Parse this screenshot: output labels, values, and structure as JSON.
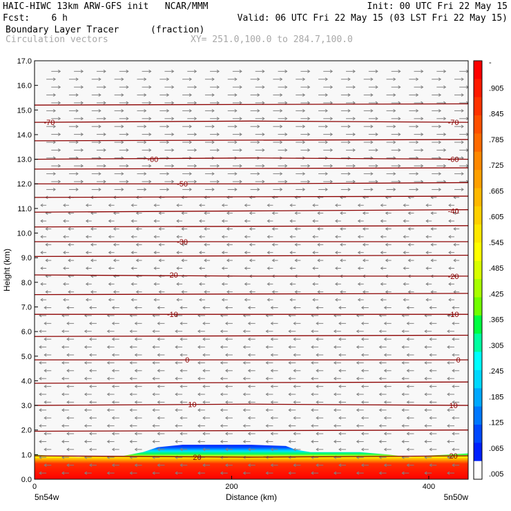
{
  "header": {
    "title_left": "HAIC-HIWC 13km ARW-GFS init   NCAR/MMM",
    "init": "Init: 00 UTC Fri 22 May 15",
    "fcst": "Fcst:    6 h",
    "valid": "Valid: 06 UTC Fri 22 May 15 (03 LST Fri 22 May 15)",
    "field": "Boundary Layer Tracer",
    "units": "(fraction)",
    "vectors": "Circulation vectors",
    "xsect": "XY= 251.0,100.0 to 284.7,100.0"
  },
  "chart_data": {
    "type": "heatmap",
    "title": "Boundary Layer Tracer",
    "units": "(fraction)",
    "xlabel": "Distance (km)",
    "ylabel": "Height (km)",
    "xlim": [
      0,
      440
    ],
    "ylim": [
      0,
      17
    ],
    "x_ticks": [
      0,
      200,
      400
    ],
    "y_ticks": [
      "0.0",
      "1.0",
      "2.0",
      "3.0",
      "4.0",
      "5.0",
      "6.0",
      "7.0",
      "8.0",
      "9.0",
      "10.0",
      "11.0",
      "12.0",
      "13.0",
      "14.0",
      "15.0",
      "16.0",
      "17.0"
    ],
    "x_end_labels": {
      "left": "5n54w",
      "right": "5n50w"
    },
    "colorbar": {
      "labels": [
        "-",
        ".905",
        ".845",
        ".785",
        ".725",
        ".665",
        ".605",
        ".545",
        ".485",
        ".425",
        ".365",
        ".305",
        ".245",
        ".185",
        ".125",
        ".065",
        ".005"
      ],
      "colors": [
        "#ff0000",
        "#ff1a00",
        "#ff3300",
        "#ff5000",
        "#ff6a00",
        "#ff8800",
        "#ffa000",
        "#ffb800",
        "#ffd000",
        "#ffe800",
        "#ffff00",
        "#d8ff00",
        "#a8ff00",
        "#70ff00",
        "#00ff40",
        "#00ffa0",
        "#00ffff",
        "#00d8ff",
        "#00a8ff",
        "#0078ff",
        "#0048ff",
        "#0020ff",
        "#ffffff"
      ]
    },
    "tracer_top": [
      [
        0,
        1.0
      ],
      [
        20,
        0.95
      ],
      [
        45,
        0.9
      ],
      [
        60,
        0.95
      ],
      [
        90,
        0.95
      ],
      [
        110,
        1.1
      ],
      [
        125,
        1.3
      ],
      [
        150,
        1.4
      ],
      [
        220,
        1.4
      ],
      [
        255,
        1.35
      ],
      [
        265,
        1.2
      ],
      [
        280,
        1.1
      ],
      [
        330,
        1.1
      ],
      [
        360,
        1.0
      ],
      [
        380,
        0.9
      ],
      [
        395,
        0.95
      ],
      [
        440,
        1.05
      ]
    ],
    "temperature_contours": [
      {
        "label": "-70",
        "z": [
          14.5,
          14.55,
          14.5
        ]
      },
      {
        "label": "-60",
        "z": [
          13.0,
          13.05,
          13.0
        ]
      },
      {
        "label": "-50",
        "z": [
          12.0,
          12.0,
          12.05
        ]
      },
      {
        "label": "-40",
        "z": [
          10.85,
          10.9,
          10.95
        ]
      },
      {
        "label": "-30",
        "z": [
          9.65,
          9.65,
          9.65
        ]
      },
      {
        "label": "-20",
        "z": [
          8.3,
          8.25,
          8.25
        ]
      },
      {
        "label": "-10",
        "z": [
          6.7,
          6.7,
          6.7
        ]
      },
      {
        "label": "0",
        "z": [
          4.85,
          4.85,
          4.85
        ]
      },
      {
        "label": "10",
        "z": [
          3.0,
          3.05,
          3.0
        ]
      },
      {
        "label": "20",
        "z": [
          0.95,
          0.9,
          0.95
        ]
      }
    ],
    "contour_labels": [
      {
        "text": "-70",
        "x": 15,
        "z": 14.5
      },
      {
        "text": "-70",
        "x": 425,
        "z": 14.5
      },
      {
        "text": "-60",
        "x": 120,
        "z": 13.0
      },
      {
        "text": "-60",
        "x": 425,
        "z": 13.0
      },
      {
        "text": "-50",
        "x": 150,
        "z": 12.0
      },
      {
        "text": "-40",
        "x": 425,
        "z": 10.9
      },
      {
        "text": "-30",
        "x": 150,
        "z": 9.65
      },
      {
        "text": "-20",
        "x": 140,
        "z": 8.3
      },
      {
        "text": "-20",
        "x": 425,
        "z": 8.25
      },
      {
        "text": "-10",
        "x": 140,
        "z": 6.7
      },
      {
        "text": "-10",
        "x": 425,
        "z": 6.7
      },
      {
        "text": "0",
        "x": 155,
        "z": 4.85
      },
      {
        "text": "0",
        "x": 430,
        "z": 4.85
      },
      {
        "text": "10",
        "x": 160,
        "z": 3.05
      },
      {
        "text": "10",
        "x": 425,
        "z": 3.0
      },
      {
        "text": "20",
        "x": 165,
        "z": 0.9
      },
      {
        "text": "20",
        "x": 425,
        "z": 0.95
      }
    ]
  },
  "colors": {
    "contour": "#8b0000",
    "vector": "#808080",
    "frame": "#000000",
    "header_gray": "#a8a8a8"
  }
}
